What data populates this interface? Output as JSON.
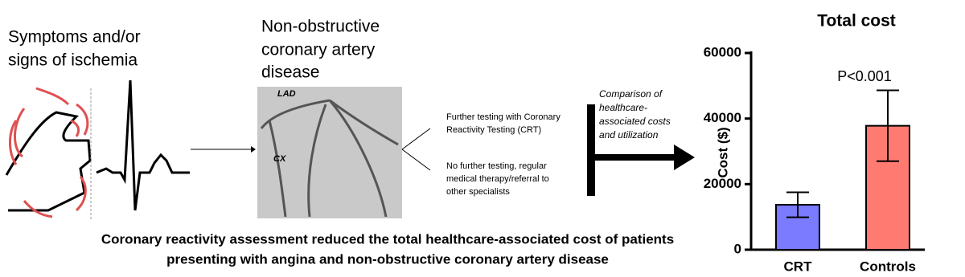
{
  "left_label": {
    "lines": [
      "Symptoms and/or",
      "signs of ischemia"
    ]
  },
  "middle_label": {
    "lines": [
      "Non-obstructive",
      "coronary artery",
      "disease"
    ]
  },
  "angiogram": {
    "labels": [
      "LAD",
      "CX"
    ]
  },
  "options": [
    {
      "lines": [
        "Further testing with Coronary",
        "Reactivity Testing (CRT)"
      ]
    },
    {
      "lines": [
        "No further testing, regular",
        "medical therapy/referral to",
        "other specialists"
      ]
    }
  ],
  "comparison": {
    "lines": [
      "Comparison of",
      "healthcare-",
      "associated costs",
      "and utilization"
    ]
  },
  "caption": {
    "lines": [
      "Coronary reactivity assessment reduced the total healthcare-associated cost of patients",
      "presenting with angina and non-obstructive coronary artery disease"
    ]
  },
  "chart_data": {
    "type": "bar",
    "title": "Total cost",
    "y_label": "Cost ($)",
    "annotation": "P<0.001",
    "categories": [
      "CRT",
      "Controls"
    ],
    "values": [
      13700,
      37800
    ],
    "errors": [
      3800,
      10800
    ],
    "colors": [
      "#7b7bff",
      "#ff7a70"
    ],
    "ylim": [
      0,
      60000
    ],
    "yticks": [
      0,
      20000,
      40000,
      60000
    ]
  }
}
